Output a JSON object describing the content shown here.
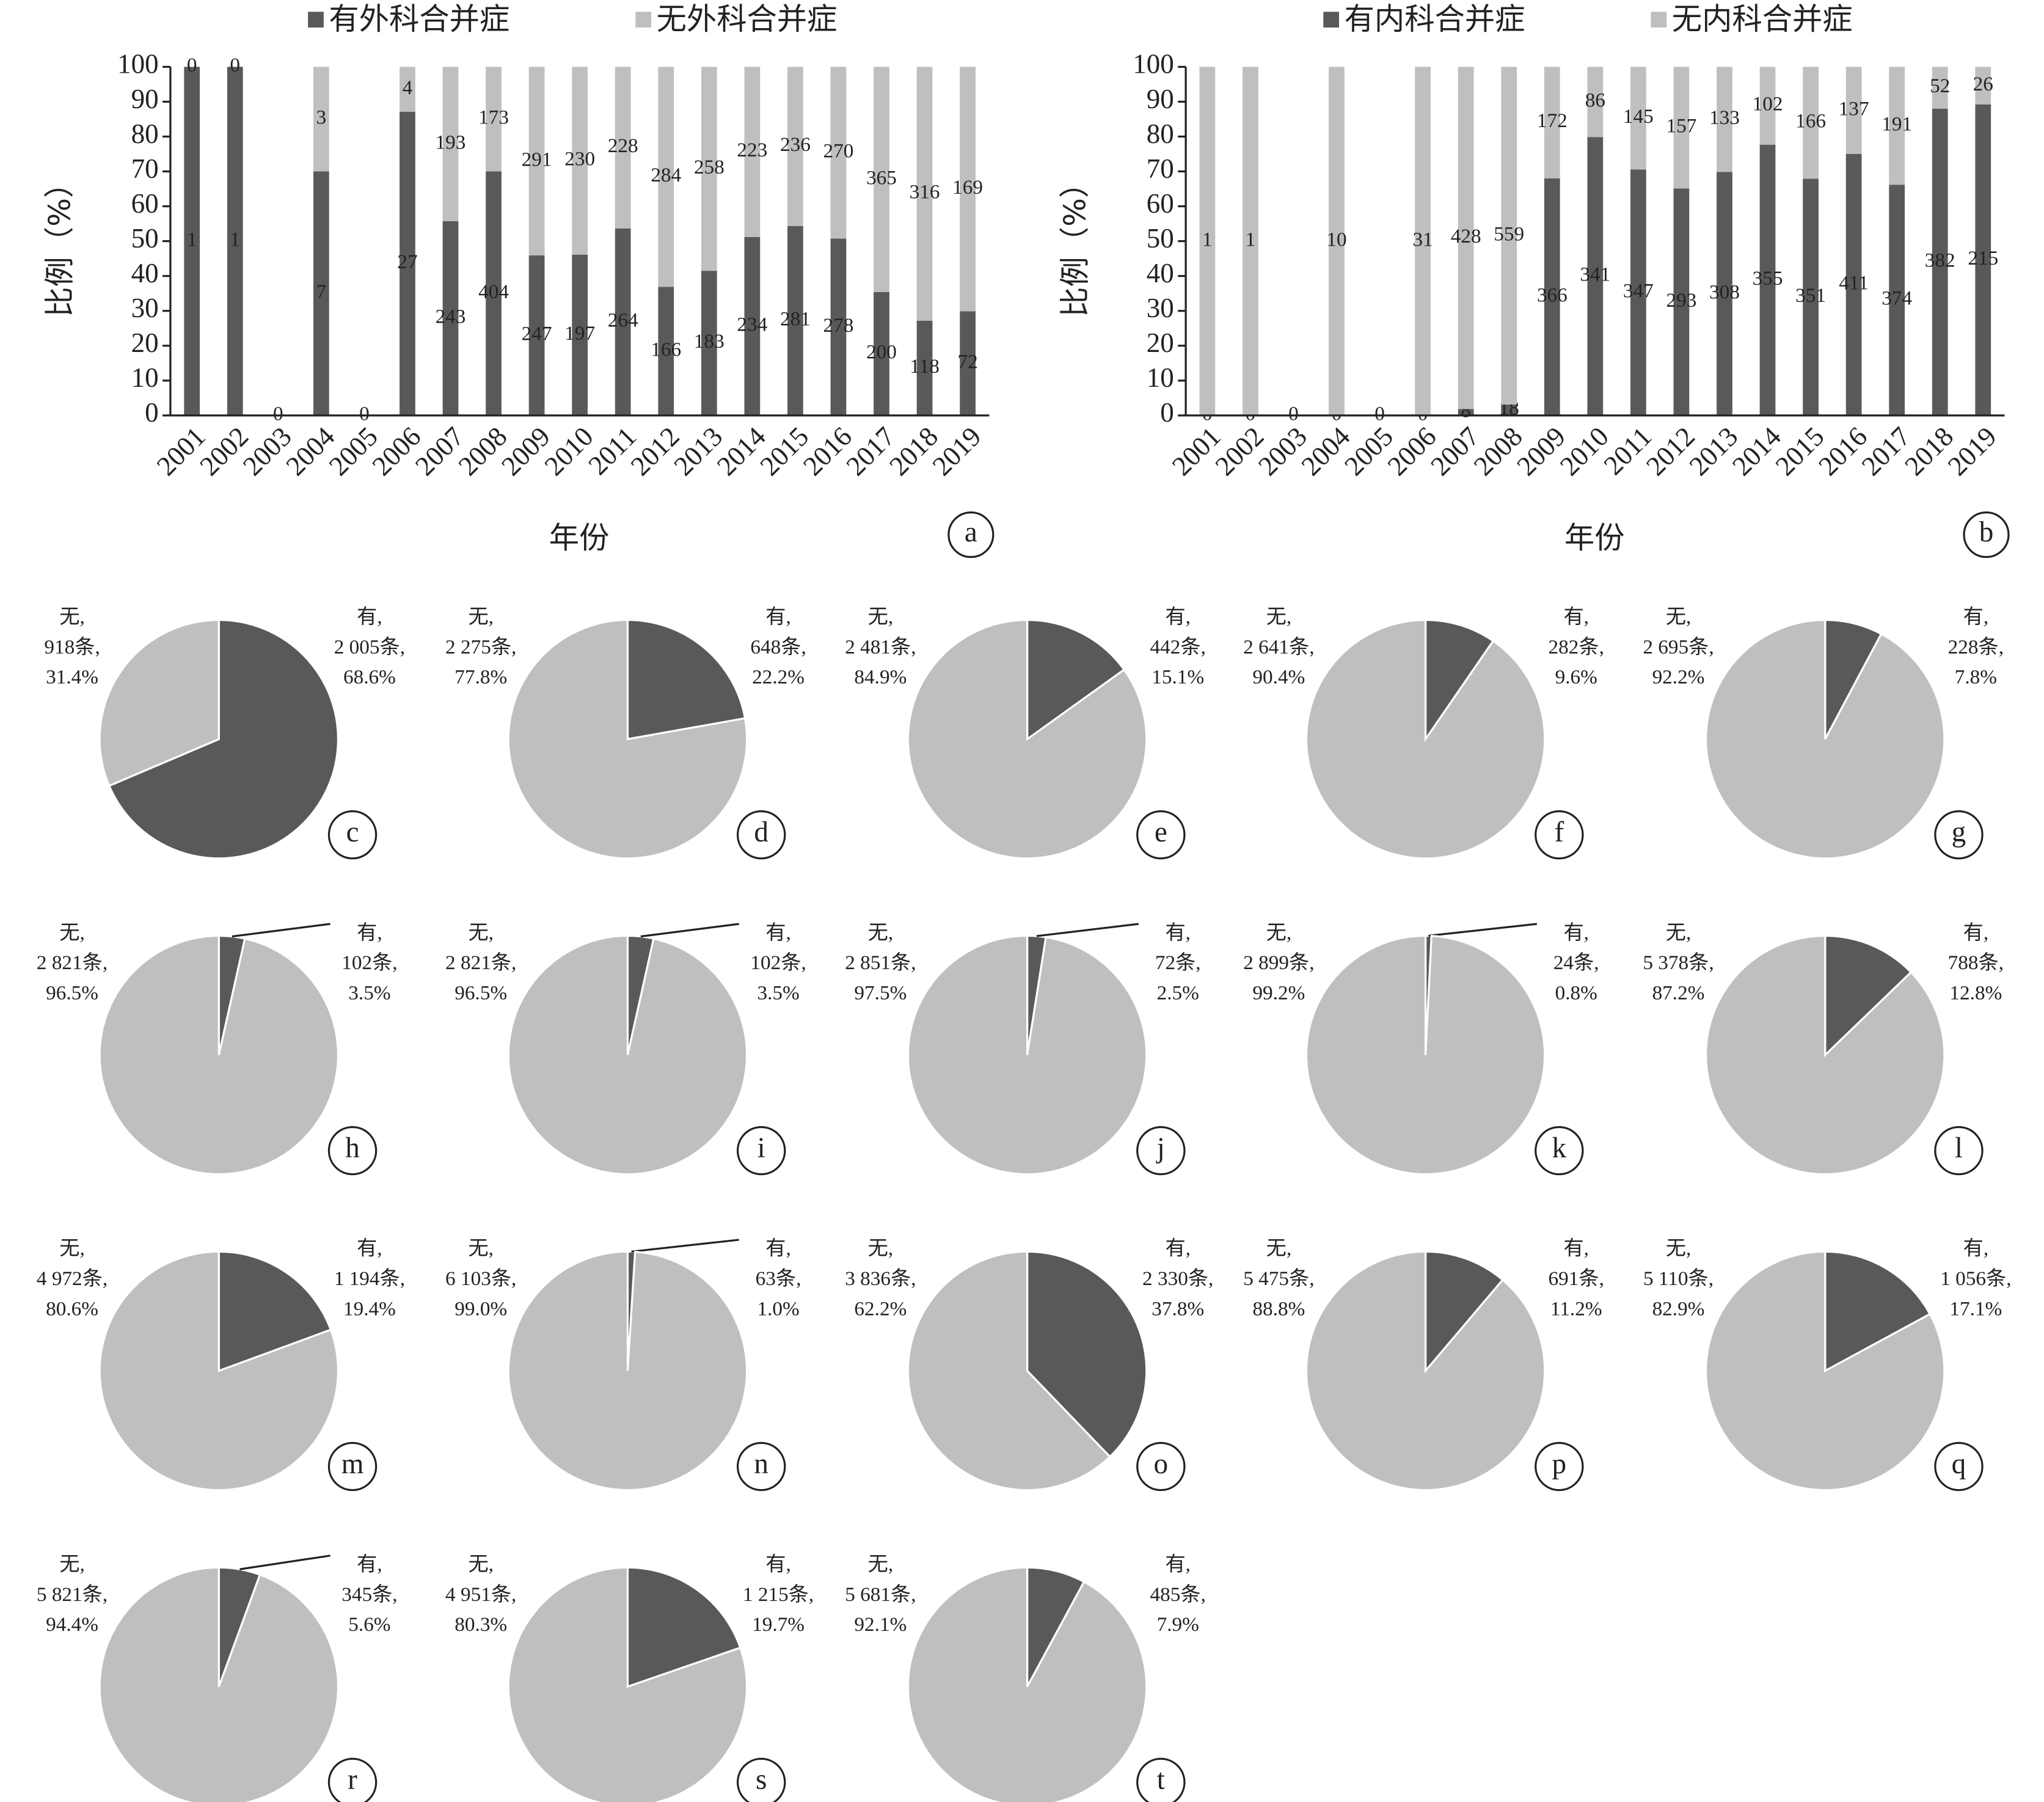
{
  "chart_data": [
    {
      "type": "bar",
      "stacked": "percent",
      "label": "a",
      "x_label": "年份",
      "y_label": "比例（%）",
      "categories": [
        "2001",
        "2002",
        "2003",
        "2004",
        "2005",
        "2006",
        "2007",
        "2008",
        "2009",
        "2010",
        "2011",
        "2012",
        "2013",
        "2014",
        "2015",
        "2016",
        "2017",
        "2018",
        "2019"
      ],
      "series": [
        {
          "name": "有外科合并症",
          "color": "#595959",
          "values": [
            1,
            1,
            0,
            7,
            0,
            27,
            243,
            404,
            247,
            197,
            264,
            166,
            183,
            234,
            281,
            278,
            200,
            118,
            72
          ]
        },
        {
          "name": "无外科合并症",
          "color": "#bfbfbf",
          "values": [
            0,
            0,
            null,
            3,
            null,
            4,
            193,
            173,
            291,
            230,
            228,
            284,
            258,
            223,
            236,
            270,
            365,
            316,
            169
          ]
        }
      ],
      "ylim": [
        0,
        100
      ],
      "yticks": [
        0,
        10,
        20,
        30,
        40,
        50,
        60,
        70,
        80,
        90,
        100
      ],
      "grid": false,
      "legend": "top"
    },
    {
      "type": "bar",
      "stacked": "percent",
      "label": "b",
      "x_label": "年份",
      "y_label": "比例（%）",
      "categories": [
        "2001",
        "2002",
        "2003",
        "2004",
        "2005",
        "2006",
        "2007",
        "2008",
        "2009",
        "2010",
        "2011",
        "2012",
        "2013",
        "2014",
        "2015",
        "2016",
        "2017",
        "2018",
        "2019"
      ],
      "series": [
        {
          "name": "有内科合并症",
          "color": "#595959",
          "values": [
            0,
            0,
            0,
            0,
            0,
            0,
            8,
            18,
            366,
            341,
            347,
            293,
            308,
            355,
            351,
            411,
            374,
            382,
            215
          ]
        },
        {
          "name": "无内科合并症",
          "color": "#bfbfbf",
          "values": [
            1,
            1,
            null,
            10,
            null,
            31,
            428,
            559,
            172,
            86,
            145,
            157,
            133,
            102,
            166,
            137,
            191,
            52,
            26
          ]
        }
      ],
      "ylim": [
        0,
        100
      ],
      "yticks": [
        0,
        10,
        20,
        30,
        40,
        50,
        60,
        70,
        80,
        90,
        100
      ],
      "grid": false,
      "legend": "top"
    },
    {
      "type": "pie",
      "label": "c",
      "categories": [
        "有,",
        "无,"
      ],
      "colors": [
        "#595959",
        "#bfbfbf"
      ],
      "values": [
        68.6,
        31.4
      ],
      "value_labels": [
        "68.6%",
        "31.4%"
      ],
      "count_labels": [
        "2 005条,",
        "918条,"
      ]
    },
    {
      "type": "pie",
      "label": "d",
      "categories": [
        "有,",
        "无,"
      ],
      "colors": [
        "#595959",
        "#bfbfbf"
      ],
      "values": [
        22.2,
        77.8
      ],
      "value_labels": [
        "22.2%",
        "77.8%"
      ],
      "count_labels": [
        "648条,",
        "2 275条,"
      ]
    },
    {
      "type": "pie",
      "label": "e",
      "categories": [
        "有,",
        "无,"
      ],
      "colors": [
        "#595959",
        "#bfbfbf"
      ],
      "values": [
        15.1,
        84.9
      ],
      "value_labels": [
        "15.1%",
        "84.9%"
      ],
      "count_labels": [
        "442条,",
        "2 481条,"
      ]
    },
    {
      "type": "pie",
      "label": "f",
      "categories": [
        "有,",
        "无,"
      ],
      "colors": [
        "#595959",
        "#bfbfbf"
      ],
      "values": [
        9.6,
        90.4
      ],
      "value_labels": [
        "9.6%",
        "90.4%"
      ],
      "count_labels": [
        "282条,",
        "2 641条,"
      ]
    },
    {
      "type": "pie",
      "label": "g",
      "categories": [
        "有,",
        "无,"
      ],
      "colors": [
        "#595959",
        "#bfbfbf"
      ],
      "values": [
        7.8,
        92.2
      ],
      "value_labels": [
        "7.8%",
        "92.2%"
      ],
      "count_labels": [
        "228条,",
        "2 695条,"
      ]
    },
    {
      "type": "pie",
      "label": "h",
      "categories": [
        "有,",
        "无,"
      ],
      "colors": [
        "#595959",
        "#bfbfbf"
      ],
      "values": [
        3.5,
        96.5
      ],
      "value_labels": [
        "3.5%",
        "96.5%"
      ],
      "count_labels": [
        "102条,",
        "2 821条,"
      ]
    },
    {
      "type": "pie",
      "label": "i",
      "categories": [
        "有,",
        "无,"
      ],
      "colors": [
        "#595959",
        "#bfbfbf"
      ],
      "values": [
        3.5,
        96.5
      ],
      "value_labels": [
        "3.5%",
        "96.5%"
      ],
      "count_labels": [
        "102条,",
        "2 821条,"
      ]
    },
    {
      "type": "pie",
      "label": "j",
      "categories": [
        "有,",
        "无,"
      ],
      "colors": [
        "#595959",
        "#bfbfbf"
      ],
      "values": [
        2.5,
        97.5
      ],
      "value_labels": [
        "2.5%",
        "97.5%"
      ],
      "count_labels": [
        "72条,",
        "2 851条,"
      ]
    },
    {
      "type": "pie",
      "label": "k",
      "categories": [
        "有,",
        "无,"
      ],
      "colors": [
        "#595959",
        "#bfbfbf"
      ],
      "values": [
        0.8,
        99.2
      ],
      "value_labels": [
        "0.8%",
        "99.2%"
      ],
      "count_labels": [
        "24条,",
        "2 899条,"
      ]
    },
    {
      "type": "pie",
      "label": "l",
      "categories": [
        "有,",
        "无,"
      ],
      "colors": [
        "#595959",
        "#bfbfbf"
      ],
      "values": [
        12.8,
        87.2
      ],
      "value_labels": [
        "12.8%",
        "87.2%"
      ],
      "count_labels": [
        "788条,",
        "5 378条,"
      ]
    },
    {
      "type": "pie",
      "label": "m",
      "categories": [
        "有,",
        "无,"
      ],
      "colors": [
        "#595959",
        "#bfbfbf"
      ],
      "values": [
        19.4,
        80.6
      ],
      "value_labels": [
        "19.4%",
        "80.6%"
      ],
      "count_labels": [
        "1 194条,",
        "4 972条,"
      ]
    },
    {
      "type": "pie",
      "label": "n",
      "categories": [
        "有,",
        "无,"
      ],
      "colors": [
        "#595959",
        "#bfbfbf"
      ],
      "values": [
        1.0,
        99.0
      ],
      "value_labels": [
        "1.0%",
        "99.0%"
      ],
      "count_labels": [
        "63条,",
        "6 103条,"
      ]
    },
    {
      "type": "pie",
      "label": "o",
      "categories": [
        "有,",
        "无,"
      ],
      "colors": [
        "#595959",
        "#bfbfbf"
      ],
      "values": [
        37.8,
        62.2
      ],
      "value_labels": [
        "37.8%",
        "62.2%"
      ],
      "count_labels": [
        "2 330条,",
        "3 836条,"
      ]
    },
    {
      "type": "pie",
      "label": "p",
      "categories": [
        "有,",
        "无,"
      ],
      "colors": [
        "#595959",
        "#bfbfbf"
      ],
      "values": [
        11.2,
        88.8
      ],
      "value_labels": [
        "11.2%",
        "88.8%"
      ],
      "count_labels": [
        "691条,",
        "5 475条,"
      ]
    },
    {
      "type": "pie",
      "label": "q",
      "categories": [
        "有,",
        "无,"
      ],
      "colors": [
        "#595959",
        "#bfbfbf"
      ],
      "values": [
        17.1,
        82.9
      ],
      "value_labels": [
        "17.1%",
        "82.9%"
      ],
      "count_labels": [
        "1 056条,",
        "5 110条,"
      ]
    },
    {
      "type": "pie",
      "label": "r",
      "categories": [
        "有,",
        "无,"
      ],
      "colors": [
        "#595959",
        "#bfbfbf"
      ],
      "values": [
        5.6,
        94.4
      ],
      "value_labels": [
        "5.6%",
        "94.4%"
      ],
      "count_labels": [
        "345条,",
        "5 821条,"
      ]
    },
    {
      "type": "pie",
      "label": "s",
      "categories": [
        "有,",
        "无,"
      ],
      "colors": [
        "#595959",
        "#bfbfbf"
      ],
      "values": [
        19.7,
        80.3
      ],
      "value_labels": [
        "19.7%",
        "80.3%"
      ],
      "count_labels": [
        "1 215条,",
        "4 951条,"
      ]
    },
    {
      "type": "pie",
      "label": "t",
      "categories": [
        "有,",
        "无,"
      ],
      "colors": [
        "#595959",
        "#bfbfbf"
      ],
      "values": [
        7.9,
        92.1
      ],
      "value_labels": [
        "7.9%",
        "92.1%"
      ],
      "count_labels": [
        "485条,",
        "5 681条,"
      ]
    }
  ]
}
